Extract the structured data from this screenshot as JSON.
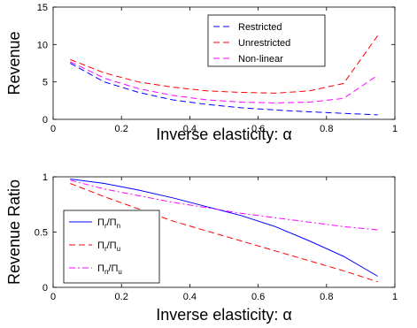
{
  "chart_data": [
    {
      "type": "line",
      "xlabel": "Inverse elasticity: α",
      "ylabel": "Revenue",
      "xlim": [
        0,
        1
      ],
      "ylim": [
        0,
        15
      ],
      "xticks": [
        "0",
        "0.2",
        "0.4",
        "0.6",
        "0.8",
        "1"
      ],
      "yticks": [
        "0",
        "5",
        "10",
        "15"
      ],
      "grid": false,
      "legend_position": "top-right",
      "series": [
        {
          "name": "Restricted",
          "color": "#0000ff",
          "dash": "dashed",
          "x": [
            0.05,
            0.15,
            0.25,
            0.35,
            0.45,
            0.55,
            0.65,
            0.75,
            0.85,
            0.95
          ],
          "y": [
            7.5,
            5.0,
            3.6,
            2.6,
            2.0,
            1.55,
            1.25,
            1.0,
            0.8,
            0.6
          ]
        },
        {
          "name": "Unrestricted",
          "color": "#ff0000",
          "dash": "dashed",
          "x": [
            0.05,
            0.15,
            0.25,
            0.35,
            0.45,
            0.55,
            0.65,
            0.75,
            0.85,
            0.95
          ],
          "y": [
            8.0,
            6.2,
            5.0,
            4.3,
            3.8,
            3.6,
            3.5,
            3.8,
            4.8,
            11.2
          ]
        },
        {
          "name": "Non-linear",
          "color": "#ff00ff",
          "dash": "dashed",
          "x": [
            0.05,
            0.15,
            0.25,
            0.35,
            0.45,
            0.55,
            0.65,
            0.75,
            0.85,
            0.95
          ],
          "y": [
            7.7,
            5.5,
            4.1,
            3.2,
            2.6,
            2.3,
            2.2,
            2.3,
            2.8,
            5.9
          ]
        }
      ]
    },
    {
      "type": "line",
      "xlabel": "Inverse elasticity: α",
      "ylabel": "Revenue Ratio",
      "xlim": [
        0,
        1
      ],
      "ylim": [
        0,
        1
      ],
      "xticks": [
        "0",
        "0.2",
        "0.4",
        "0.6",
        "0.8",
        "1"
      ],
      "yticks": [
        "0",
        "0.5",
        "1"
      ],
      "grid": false,
      "legend_position": "bottom-left",
      "series": [
        {
          "name": "Π_r/Π_n",
          "name_parts": [
            "Π",
            "r",
            "/Π",
            "n"
          ],
          "color": "#0000ff",
          "dash": "solid",
          "x": [
            0.05,
            0.15,
            0.25,
            0.35,
            0.45,
            0.55,
            0.65,
            0.75,
            0.85,
            0.95
          ],
          "y": [
            0.98,
            0.94,
            0.88,
            0.81,
            0.73,
            0.65,
            0.55,
            0.42,
            0.28,
            0.1
          ]
        },
        {
          "name": "Π_r/Π_u",
          "name_parts": [
            "Π",
            "r",
            "/Π",
            "u"
          ],
          "color": "#ff0000",
          "dash": "dashed",
          "x": [
            0.05,
            0.15,
            0.25,
            0.35,
            0.45,
            0.55,
            0.65,
            0.75,
            0.85,
            0.95
          ],
          "y": [
            0.94,
            0.82,
            0.71,
            0.6,
            0.51,
            0.42,
            0.33,
            0.24,
            0.15,
            0.05
          ]
        },
        {
          "name": "Π_n/Π_u",
          "name_parts": [
            "Π",
            "n",
            "/Π",
            "u"
          ],
          "color": "#ff00ff",
          "dash": "dashdot",
          "x": [
            0.05,
            0.15,
            0.25,
            0.35,
            0.45,
            0.55,
            0.65,
            0.75,
            0.85,
            0.95
          ],
          "y": [
            0.97,
            0.89,
            0.83,
            0.77,
            0.72,
            0.67,
            0.63,
            0.59,
            0.55,
            0.52
          ]
        }
      ]
    }
  ]
}
